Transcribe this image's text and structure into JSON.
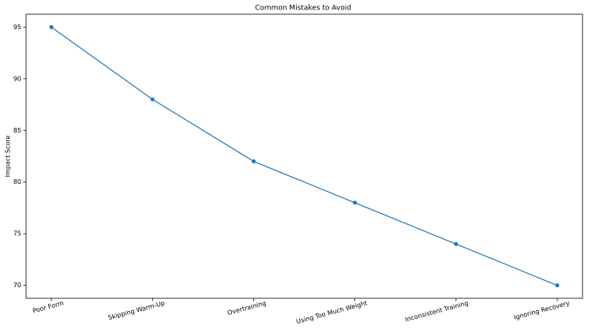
{
  "chart_data": {
    "type": "line",
    "title": "Common Mistakes to Avoid",
    "ylabel": "Impact Score",
    "categories": [
      "Poor Form",
      "Skipping Warm-Up",
      "Overtraining",
      "Using Too Much Weight",
      "Inconsistent Training",
      "Ignoring Recovery"
    ],
    "values": [
      95,
      88,
      82,
      78,
      74,
      70
    ],
    "color": "#1f77b4",
    "markers": true,
    "ylim": [
      68.75,
      96.25
    ],
    "yticks": [
      70,
      75,
      80,
      85,
      90,
      95
    ],
    "grid": false
  }
}
